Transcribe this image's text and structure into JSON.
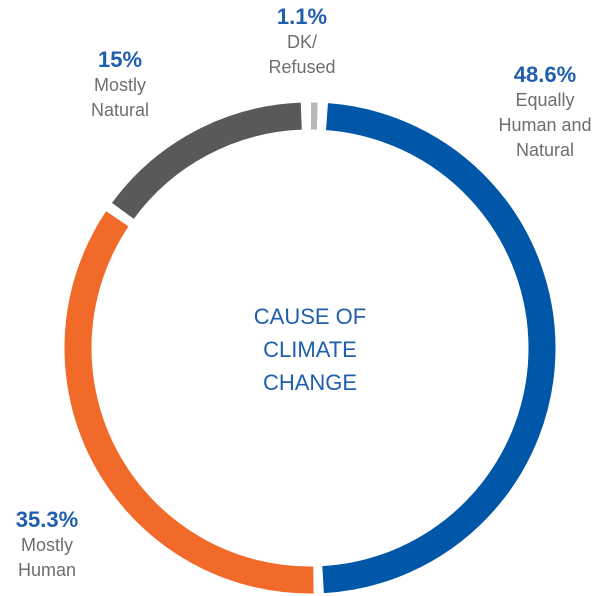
{
  "chart_data": {
    "type": "donut",
    "center_label": [
      "CAUSE OF",
      "CLIMATE",
      "CHANGE"
    ],
    "categories": [
      [
        "Equally",
        "Human and",
        "Natural"
      ],
      [
        "Mostly",
        "Human"
      ],
      [
        "Mostly",
        "Natural"
      ],
      [
        "DK/",
        "Refused"
      ]
    ],
    "values": [
      48.6,
      35.3,
      15,
      1.1
    ],
    "value_labels": [
      "48.6%",
      "35.3%",
      "15%",
      "1.1%"
    ],
    "colors": [
      "#0057a8",
      "#f26a2a",
      "#58595b",
      "#b7b8ba"
    ]
  }
}
